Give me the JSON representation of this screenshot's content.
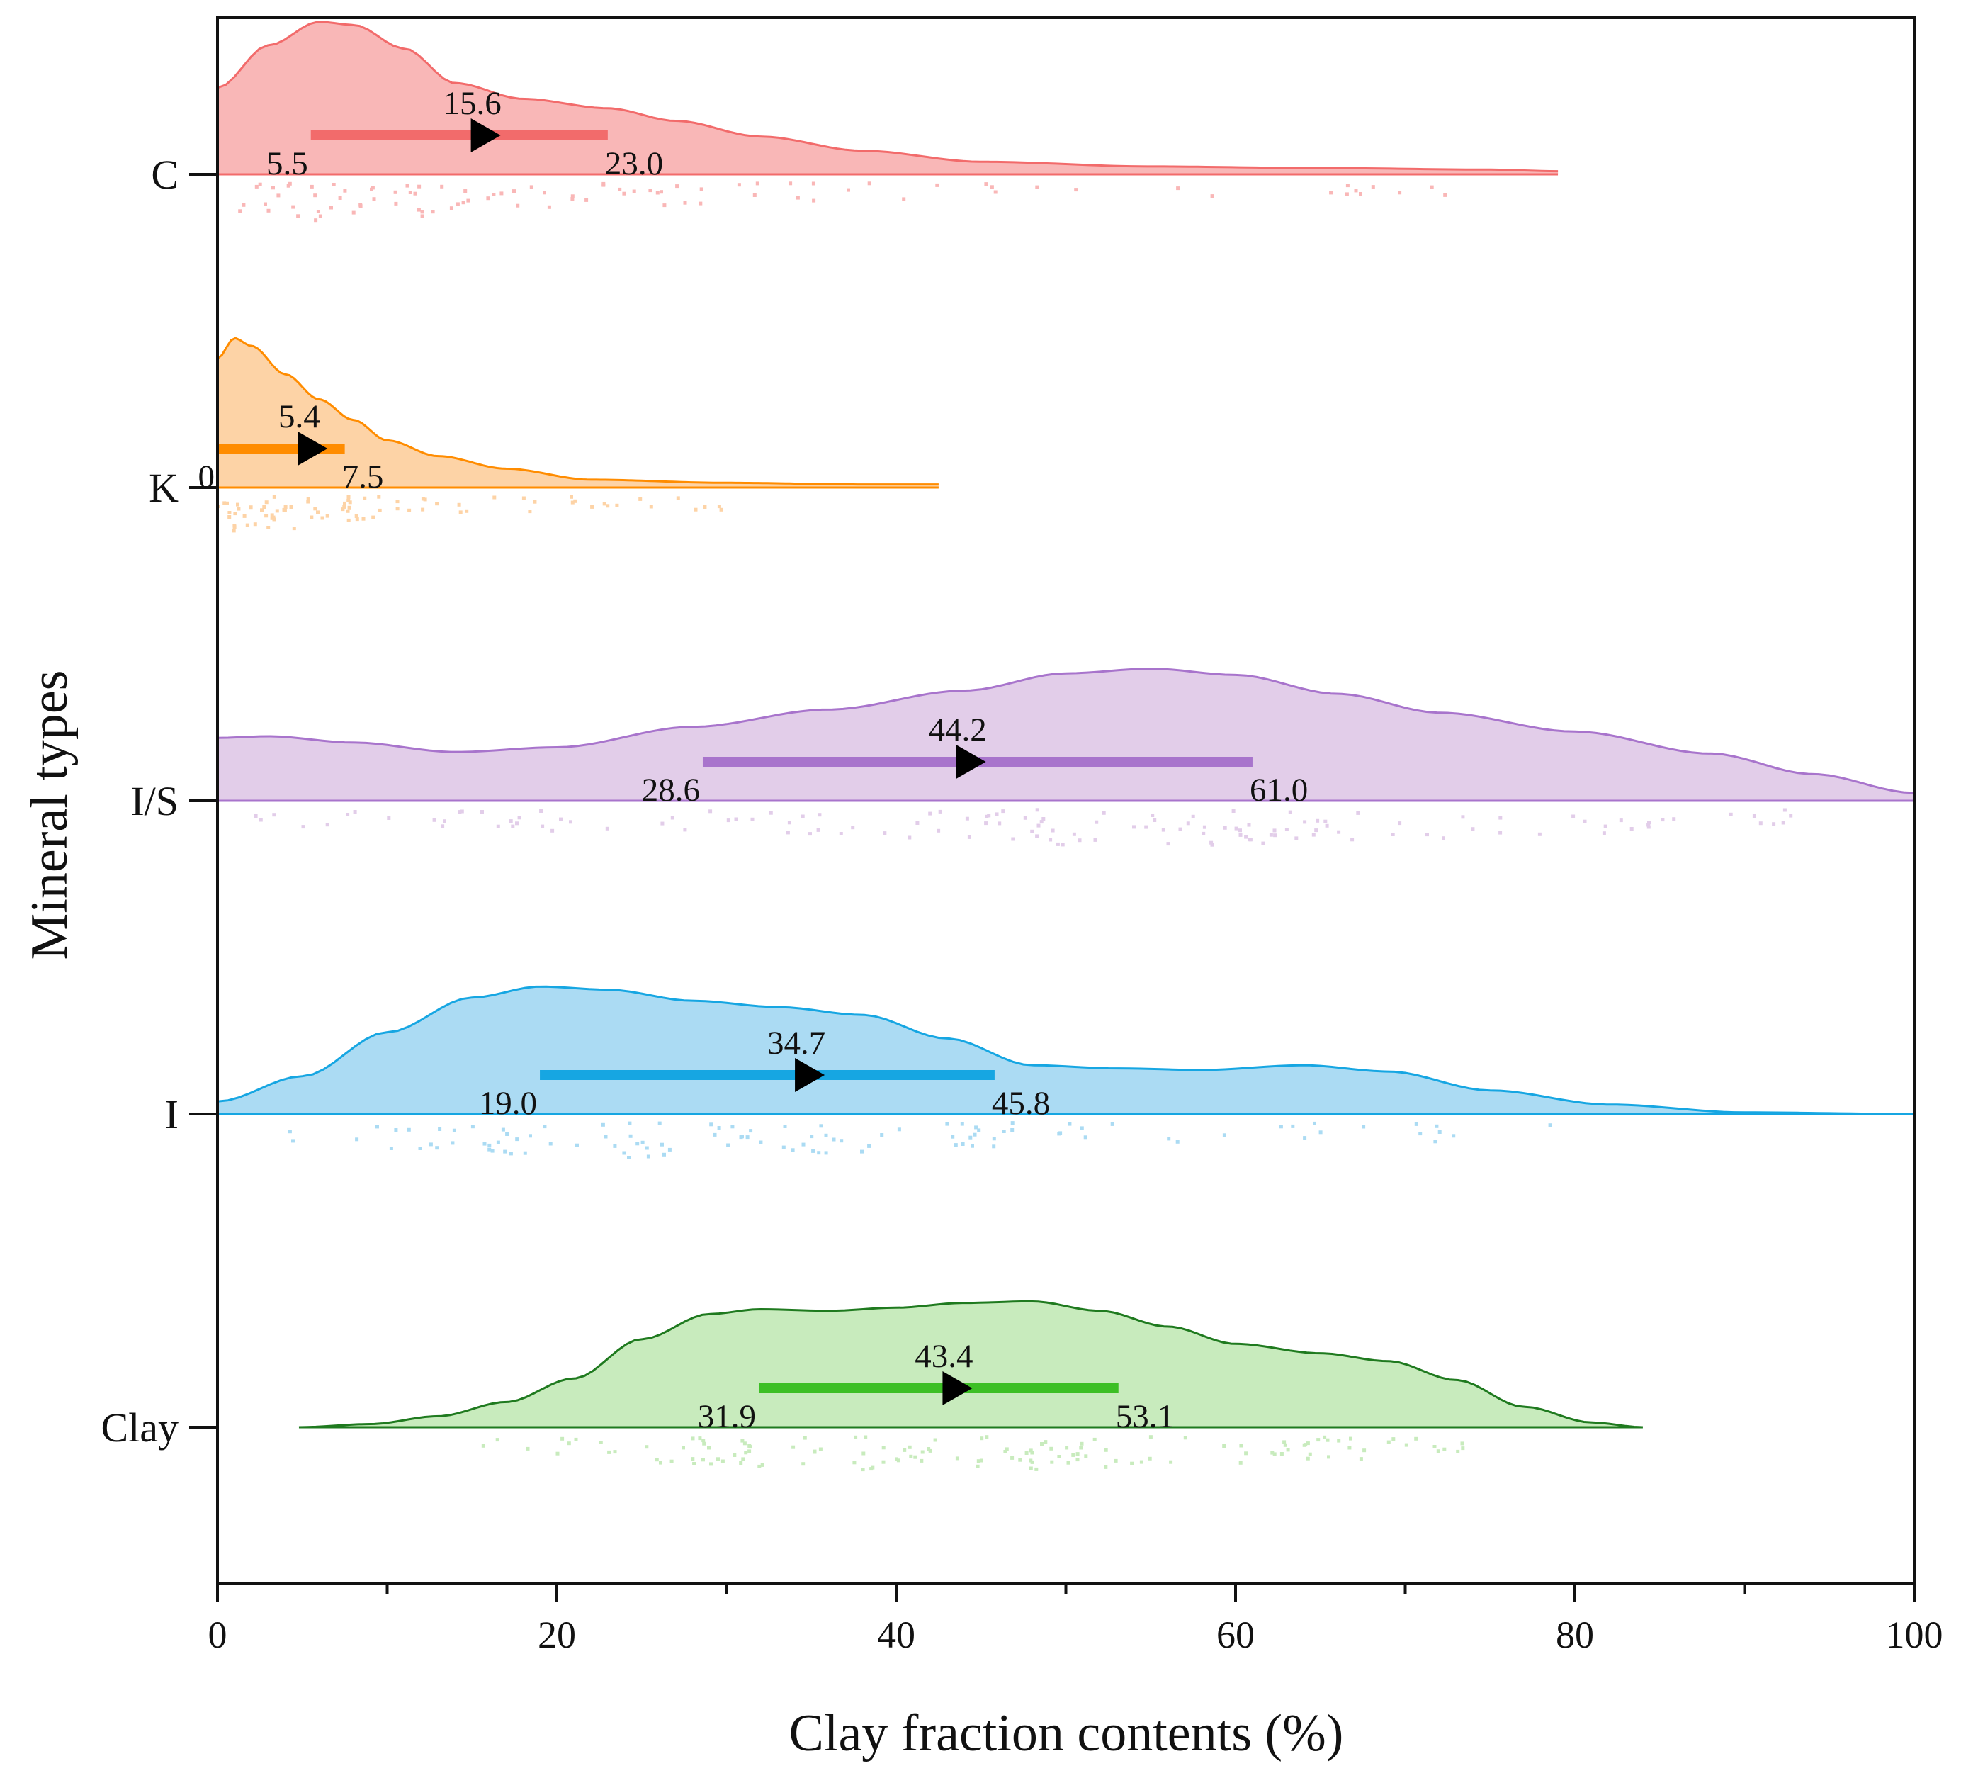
{
  "chart_data": {
    "type": "raincloud",
    "xlabel": "Clay fraction contents (%)",
    "ylabel": "Mineral types",
    "xlim": [
      0,
      100
    ],
    "xticks": [
      0,
      20,
      40,
      60,
      80,
      100
    ],
    "x_minor_step": 10,
    "series": [
      {
        "name": "C",
        "color": "#f26b6b",
        "fill": "#f9b7b7",
        "point_color": "#f9b7b7",
        "range": [
          0,
          79
        ],
        "density": [
          [
            0,
            0.55
          ],
          [
            3,
            0.82
          ],
          [
            6,
            0.97
          ],
          [
            8,
            0.95
          ],
          [
            11,
            0.8
          ],
          [
            14,
            0.58
          ],
          [
            18,
            0.48
          ],
          [
            23,
            0.42
          ],
          [
            27,
            0.34
          ],
          [
            32,
            0.24
          ],
          [
            38,
            0.15
          ],
          [
            45,
            0.08
          ],
          [
            55,
            0.05
          ],
          [
            65,
            0.04
          ],
          [
            75,
            0.03
          ],
          [
            79,
            0.02
          ]
        ],
        "q1": 5.5,
        "median": 15.6,
        "q3": 23.0,
        "q1_label": "5.5",
        "median_label": "15.6",
        "q3_label": "23.0",
        "points_range": [
          0,
          74
        ]
      },
      {
        "name": "K",
        "color": "#ff8c00",
        "fill": "#fdd3a6",
        "point_color": "#fdd3a6",
        "range": [
          0,
          42.5
        ],
        "density": [
          [
            0,
            0.82
          ],
          [
            1,
            0.95
          ],
          [
            2,
            0.9
          ],
          [
            4,
            0.72
          ],
          [
            6,
            0.56
          ],
          [
            8,
            0.43
          ],
          [
            10,
            0.3
          ],
          [
            13,
            0.2
          ],
          [
            17,
            0.12
          ],
          [
            22,
            0.05
          ],
          [
            30,
            0.03
          ],
          [
            38,
            0.02
          ],
          [
            42.5,
            0.02
          ]
        ],
        "q1": 0,
        "median": 5.4,
        "q3": 7.5,
        "q1_label": "0",
        "median_label": "5.4",
        "q3_label": "7.5",
        "points_range": [
          0,
          32
        ]
      },
      {
        "name": "I/S",
        "color": "#a874cc",
        "fill": "#e2cde9",
        "point_color": "#e2cde9",
        "range": [
          0,
          100
        ],
        "density": [
          [
            0,
            0.4
          ],
          [
            3,
            0.41
          ],
          [
            8,
            0.37
          ],
          [
            14,
            0.31
          ],
          [
            20,
            0.34
          ],
          [
            28,
            0.47
          ],
          [
            36,
            0.58
          ],
          [
            44,
            0.7
          ],
          [
            50,
            0.81
          ],
          [
            55,
            0.84
          ],
          [
            60,
            0.8
          ],
          [
            66,
            0.68
          ],
          [
            72,
            0.56
          ],
          [
            80,
            0.44
          ],
          [
            88,
            0.3
          ],
          [
            94,
            0.17
          ],
          [
            100,
            0.05
          ]
        ],
        "q1": 28.6,
        "median": 44.2,
        "q3": 61.0,
        "q1_label": "28.6",
        "median_label": "44.2",
        "q3_label": "61.0",
        "points_range": [
          2,
          94
        ]
      },
      {
        "name": "I",
        "color": "#16a6e2",
        "fill": "#abdbf3",
        "point_color": "#abdbf3",
        "range": [
          0,
          100
        ],
        "density": [
          [
            0,
            0.08
          ],
          [
            5,
            0.24
          ],
          [
            10,
            0.52
          ],
          [
            15,
            0.74
          ],
          [
            19,
            0.81
          ],
          [
            23,
            0.79
          ],
          [
            28,
            0.72
          ],
          [
            33,
            0.68
          ],
          [
            38,
            0.63
          ],
          [
            43,
            0.48
          ],
          [
            48,
            0.31
          ],
          [
            53,
            0.29
          ],
          [
            58,
            0.28
          ],
          [
            64,
            0.31
          ],
          [
            69,
            0.27
          ],
          [
            75,
            0.15
          ],
          [
            82,
            0.06
          ],
          [
            90,
            0.01
          ],
          [
            100,
            0.0
          ]
        ],
        "q1": 19.0,
        "median": 34.7,
        "q3": 45.8,
        "q1_label": "19.0",
        "median_label": "34.7",
        "q3_label": "45.8",
        "points_range": [
          3,
          83
        ]
      },
      {
        "name": "Clay",
        "color": "#1f7a1f",
        "fill": "#c8ebbd",
        "point_color": "#c8ebbd",
        "line_color": "#3cbf25",
        "range": [
          4.8,
          84
        ],
        "density": [
          [
            4.8,
            0.0
          ],
          [
            9,
            0.02
          ],
          [
            13,
            0.07
          ],
          [
            17,
            0.16
          ],
          [
            21,
            0.31
          ],
          [
            25,
            0.56
          ],
          [
            29,
            0.72
          ],
          [
            32,
            0.75
          ],
          [
            36,
            0.74
          ],
          [
            40,
            0.76
          ],
          [
            44,
            0.79
          ],
          [
            48,
            0.8
          ],
          [
            52,
            0.74
          ],
          [
            56,
            0.64
          ],
          [
            60,
            0.53
          ],
          [
            65,
            0.47
          ],
          [
            69,
            0.42
          ],
          [
            73,
            0.3
          ],
          [
            77,
            0.13
          ],
          [
            81,
            0.03
          ],
          [
            84,
            0.0
          ]
        ],
        "q1": 31.9,
        "median": 43.4,
        "q3": 53.1,
        "q1_label": "31.9",
        "median_label": "43.4",
        "q3_label": "53.1",
        "points_range": [
          14,
          75
        ]
      }
    ]
  }
}
